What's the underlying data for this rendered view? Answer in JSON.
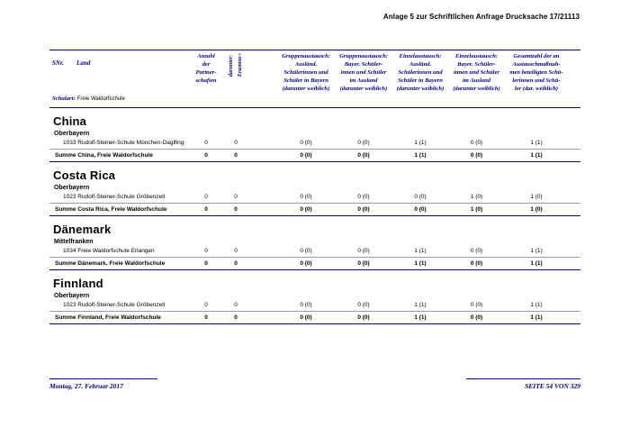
{
  "colors": {
    "navy": "#000080",
    "rule-light": "#9a9ab8"
  },
  "doc_header": "Anlage 5 zur Schriftlichen Anfrage Drucksache 17/21113",
  "table_header": {
    "snr": "SNr.",
    "land": "Land",
    "schulart_label": "Schulart:",
    "schulart_value": "Freie Waldorfschule",
    "col_partnerschaften": "Anzahl\nder\nPartner-\nschaften",
    "col_erasmus": "darunter:\nErasmus+",
    "col_gruppe_bayern": "Gruppenaustausch:\nAusländ.\nSchülerinnen und\nSchüler in Bayern\n(darunter weiblich)",
    "col_gruppe_ausland": "Gruppenaustausch:\nBayer. Schüler-\ninnen und Schüler\nim Ausland\n(darunter weiblich)",
    "col_einzel_bayern": "Einzelaustausch:\nAusländ.\nSchülerinnen und\nSchüler in Bayern\n(darunter weiblich)",
    "col_einzel_ausland": "Einzelaustausch:\nBayer. Schüler-\ninnen und Schüler\nim Ausland\n(darunter weiblich)",
    "col_gesamt": "Gesamtzahl der an\nAustauschmaßnah-\nmen beteiligten Schü-\nlerinnen und Schü-\nler (dar. weiblich)"
  },
  "sections": [
    {
      "country": "China",
      "region": "Oberbayern",
      "school": "1033 Rudolf-Steiner-Schule München-Daglfing",
      "school_values": [
        "0",
        "0",
        "0 (0)",
        "0 (0)",
        "1 (1)",
        "0 (0)",
        "1 (1)"
      ],
      "summe_label": "Summe China, Freie Waldorfschule",
      "summe_values": [
        "0",
        "0",
        "0 (0)",
        "0 (0)",
        "1 (1)",
        "0 (0)",
        "1 (1)"
      ]
    },
    {
      "country": "Costa Rica",
      "region": "Oberbayern",
      "school": "1023 Rudolf-Steiner-Schule Gröbenzell",
      "school_values": [
        "0",
        "0",
        "0 (0)",
        "0 (0)",
        "0 (0)",
        "1 (0)",
        "1 (0)"
      ],
      "summe_label": "Summe Costa Rica, Freie Waldorfschule",
      "summe_values": [
        "0",
        "0",
        "0 (0)",
        "0 (0)",
        "0 (0)",
        "1 (0)",
        "1 (0)"
      ]
    },
    {
      "country": "Dänemark",
      "region": "Mittelfranken",
      "school": "1034 Freie Waldorfschule Erlangen",
      "school_values": [
        "0",
        "0",
        "0 (0)",
        "0 (0)",
        "1 (1)",
        "0 (0)",
        "1 (1)"
      ],
      "summe_label": "Summe Dänemark, Freie Waldorfschule",
      "summe_values": [
        "0",
        "0",
        "0 (0)",
        "0 (0)",
        "1 (1)",
        "0 (0)",
        "1 (1)"
      ]
    },
    {
      "country": "Finnland",
      "region": "Oberbayern",
      "school": "1023 Rudolf-Steiner-Schule Gröbenzell",
      "school_values": [
        "0",
        "0",
        "0 (0)",
        "0 (0)",
        "1 (1)",
        "0 (0)",
        "1 (1)"
      ],
      "summe_label": "Summe Finnland, Freie Waldorfschule",
      "summe_values": [
        "0",
        "0",
        "0 (0)",
        "0 (0)",
        "1 (1)",
        "0 (0)",
        "1 (1)"
      ]
    }
  ],
  "footer": {
    "date": "Montag, 27. Februar 2017",
    "page": "SEITE 54 VON 329"
  }
}
